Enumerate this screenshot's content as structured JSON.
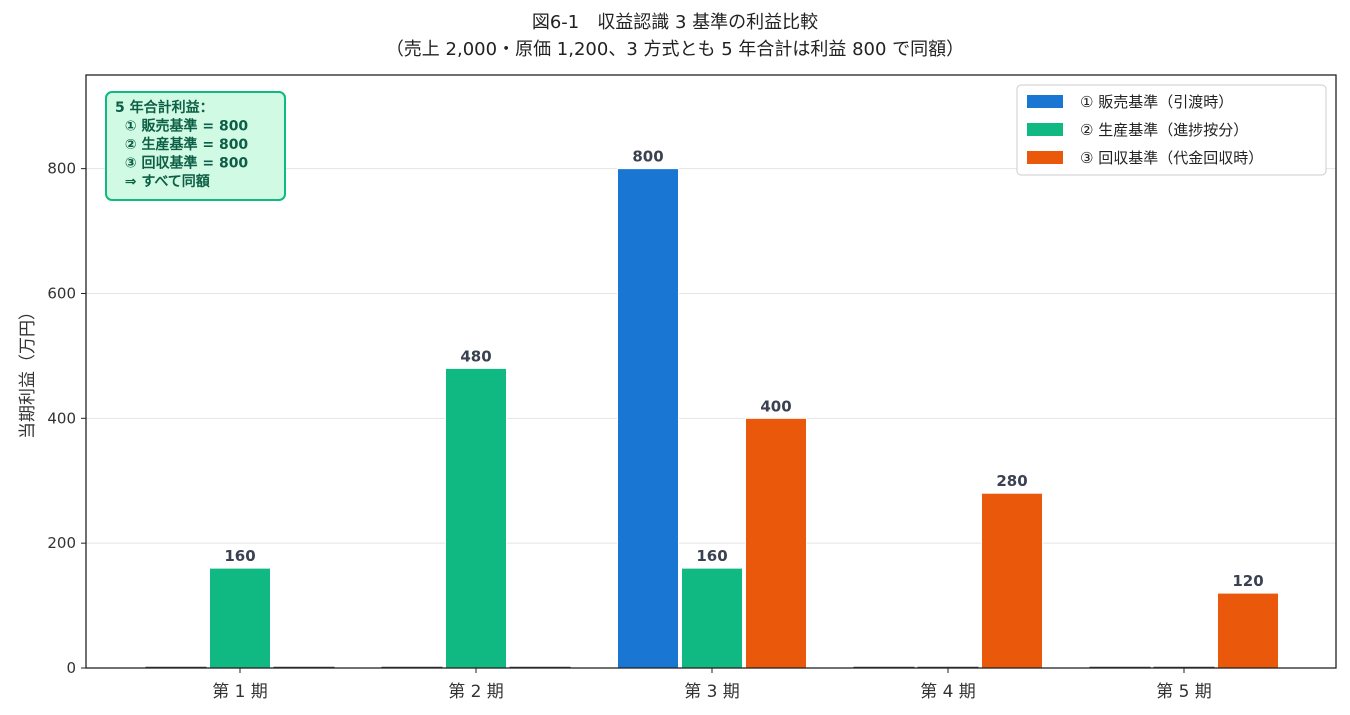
{
  "chart_data": {
    "type": "bar",
    "title": "図6-1　収益認識 3 基準の利益比較",
    "subtitle": "（売上 2,000・原価 1,200、3 方式とも 5 年合計は利益 800 で同額）",
    "xlabel": "",
    "ylabel": "当期利益（万円）",
    "ylim": [
      0,
      950
    ],
    "yticks": [
      0,
      200,
      400,
      600,
      800
    ],
    "grid": "y",
    "legend_position": "top-right",
    "categories": [
      "第 1 期",
      "第 2 期",
      "第 3 期",
      "第 4 期",
      "第 5 期"
    ],
    "series": [
      {
        "name": "① 販売基準（引渡時）",
        "color": "#1976d2",
        "values": [
          0,
          0,
          800,
          0,
          0
        ]
      },
      {
        "name": "② 生産基準（進捗按分）",
        "color": "#10b981",
        "values": [
          160,
          480,
          160,
          0,
          0
        ]
      },
      {
        "name": "③ 回収基準（代金回収時）",
        "color": "#ea580c",
        "values": [
          0,
          0,
          400,
          280,
          120
        ]
      }
    ],
    "annotation": {
      "lines": [
        "5 年合計利益：",
        "  ① 販売基準 = 800",
        "  ② 生産基準 = 800",
        "  ③ 回収基準 = 800",
        "  ⇒ すべて同額"
      ],
      "border_color": "#10b981",
      "fill_color": "#d1fae5"
    }
  }
}
